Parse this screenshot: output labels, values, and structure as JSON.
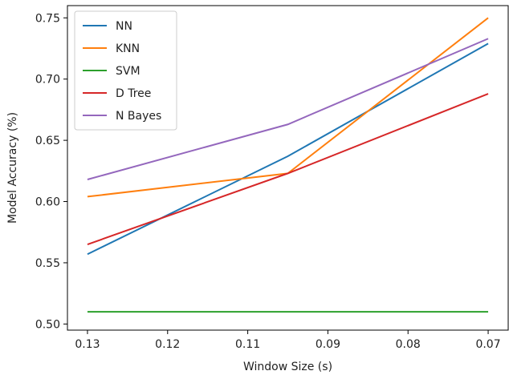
{
  "chart_data": {
    "type": "line",
    "xlabel": "Window Size (s)",
    "ylabel": "Model Accuracy (%)",
    "x_tick_labels": [
      "0.13",
      "0.12",
      "0.11",
      "0.09",
      "0.08",
      "0.07"
    ],
    "y_ticks": [
      0.5,
      0.55,
      0.6,
      0.65,
      0.7,
      0.75
    ],
    "y_tick_labels": [
      "0.50",
      "0.55",
      "0.60",
      "0.65",
      "0.70",
      "0.75"
    ],
    "ylim": [
      0.495,
      0.76
    ],
    "x_positions": [
      0,
      2,
      4
    ],
    "xlim": [
      -0.2,
      4.2
    ],
    "legend": "upper left",
    "grid": false,
    "series": [
      {
        "name": "NN",
        "color": "#1f77b4",
        "values": [
          0.557,
          0.637,
          0.729
        ]
      },
      {
        "name": "KNN",
        "color": "#ff7f0e",
        "values": [
          0.604,
          0.623,
          0.75
        ]
      },
      {
        "name": "SVM",
        "color": "#2ca02c",
        "values": [
          0.51,
          0.51,
          0.51
        ]
      },
      {
        "name": "D Tree",
        "color": "#d62728",
        "values": [
          0.565,
          0.623,
          0.688
        ]
      },
      {
        "name": "N Bayes",
        "color": "#9467bd",
        "values": [
          0.618,
          0.663,
          0.733
        ]
      }
    ]
  }
}
